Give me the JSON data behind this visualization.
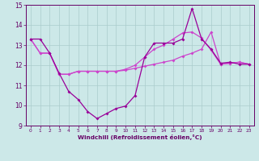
{
  "xlabel": "Windchill (Refroidissement éolien,°C)",
  "background_color": "#cce8e8",
  "grid_color": "#aacccc",
  "line_color_dark": "#990099",
  "line_color_light": "#cc44cc",
  "ylim": [
    9,
    15
  ],
  "xlim": [
    -0.5,
    23.5
  ],
  "yticks": [
    9,
    10,
    11,
    12,
    13,
    14,
    15
  ],
  "xticks": [
    0,
    1,
    2,
    3,
    4,
    5,
    6,
    7,
    8,
    9,
    10,
    11,
    12,
    13,
    14,
    15,
    16,
    17,
    18,
    19,
    20,
    21,
    22,
    23
  ],
  "series1_x": [
    0,
    1,
    2,
    3,
    4,
    5,
    6,
    7,
    8,
    9,
    10,
    11,
    12,
    13,
    14,
    15,
    16,
    17,
    18,
    19,
    20,
    21,
    22,
    23
  ],
  "series1_y": [
    13.3,
    13.3,
    12.6,
    11.6,
    10.7,
    10.3,
    9.7,
    9.35,
    9.6,
    9.85,
    9.97,
    10.5,
    12.4,
    13.1,
    13.1,
    13.1,
    13.3,
    14.82,
    13.3,
    12.8,
    12.1,
    12.15,
    12.05,
    12.05
  ],
  "series2_x": [
    0,
    1,
    2,
    3,
    4,
    5,
    6,
    7,
    8,
    9,
    10,
    11,
    12,
    13,
    14,
    15,
    16,
    17,
    18,
    19,
    20,
    21,
    22,
    23
  ],
  "series2_y": [
    13.3,
    12.6,
    12.6,
    11.55,
    11.55,
    11.7,
    11.7,
    11.7,
    11.7,
    11.7,
    11.75,
    11.85,
    11.95,
    12.05,
    12.15,
    12.25,
    12.45,
    12.6,
    12.8,
    13.65,
    12.05,
    12.1,
    12.15,
    12.05
  ],
  "series3_x": [
    0,
    1,
    2,
    3,
    4,
    5,
    6,
    7,
    8,
    9,
    10,
    11,
    12,
    13,
    14,
    15,
    16,
    17,
    18,
    19,
    20,
    21,
    22,
    23
  ],
  "series3_y": [
    13.3,
    12.6,
    12.6,
    11.55,
    11.55,
    11.7,
    11.7,
    11.7,
    11.7,
    11.7,
    11.8,
    12.0,
    12.4,
    12.8,
    13.0,
    13.3,
    13.6,
    13.65,
    13.35,
    12.75,
    12.05,
    12.1,
    12.15,
    12.05
  ]
}
